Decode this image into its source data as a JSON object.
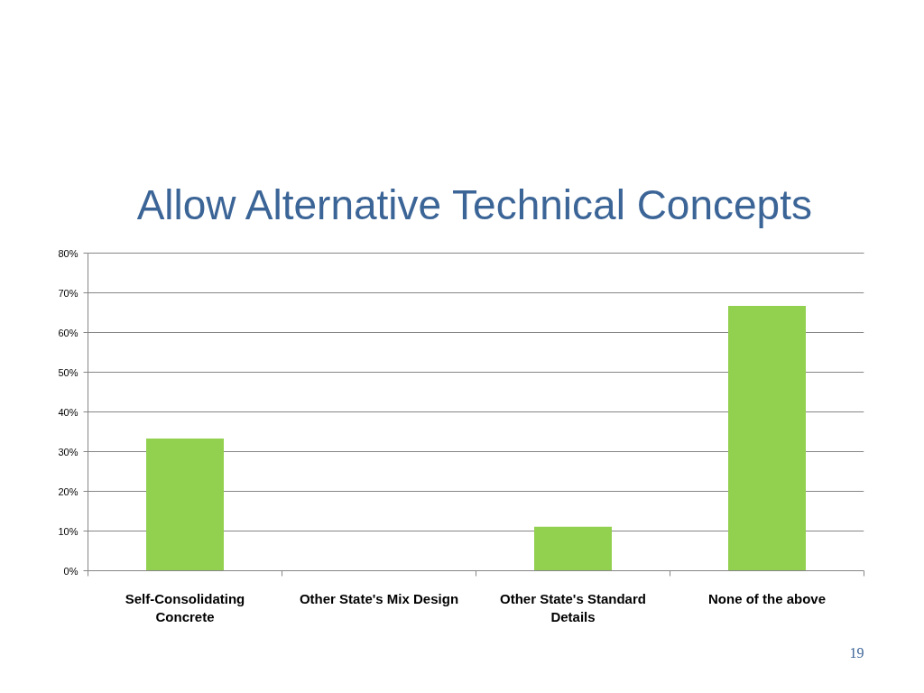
{
  "chart_data": {
    "type": "bar",
    "title": "Allow Alternative Technical Concepts",
    "categories": [
      "Self-Consolidating Concrete",
      "Other State's Mix Design",
      "Other State's Standard Details",
      "None of the above"
    ],
    "values": [
      33.3,
      0,
      11.1,
      66.7
    ],
    "color": "#92d050",
    "ylim": [
      0,
      80
    ],
    "yticks": [
      {
        "value": 0,
        "label": "0%"
      },
      {
        "value": 10,
        "label": "10%"
      },
      {
        "value": 20,
        "label": "20%"
      },
      {
        "value": 30,
        "label": "30%"
      },
      {
        "value": 40,
        "label": "40%"
      },
      {
        "value": 50,
        "label": "50%"
      },
      {
        "value": 60,
        "label": "60%"
      },
      {
        "value": 70,
        "label": "70%"
      },
      {
        "value": 80,
        "label": "80%"
      }
    ],
    "grid": "y",
    "annotations": [
      "19"
    ]
  }
}
